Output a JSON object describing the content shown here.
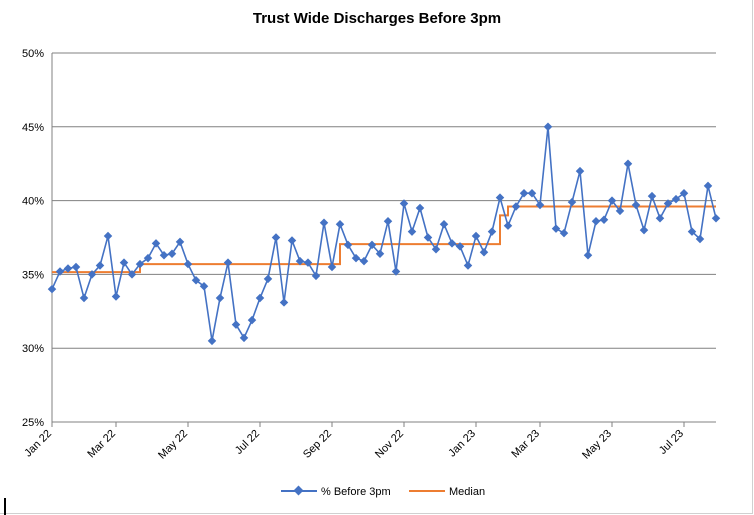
{
  "chart_data": {
    "type": "line",
    "title": "Trust Wide Discharges Before 3pm",
    "xlabel": "",
    "ylabel": "",
    "ylim": [
      25,
      50
    ],
    "y_ticks": [
      "25%",
      "30%",
      "35%",
      "40%",
      "45%",
      "50%"
    ],
    "y_tick_values": [
      25,
      30,
      35,
      40,
      45,
      50
    ],
    "x_ticks": [
      "Jan 22",
      "Mar 22",
      "May 22",
      "Jul 22",
      "Sep 22",
      "Nov 22",
      "Jan 23",
      "Mar 23",
      "May 23",
      "Jul 23"
    ],
    "x_tick_indices": [
      0,
      8,
      17,
      26,
      35,
      44,
      53,
      61,
      70,
      79
    ],
    "grid": "horizontal",
    "legend_position": "bottom",
    "series": [
      {
        "name": "% Before 3pm",
        "color": "#4472C4",
        "marker": "diamond",
        "values": [
          34.0,
          35.2,
          35.4,
          35.5,
          33.4,
          35.0,
          35.6,
          37.6,
          33.5,
          35.8,
          35.0,
          35.7,
          36.1,
          37.1,
          36.3,
          36.4,
          37.2,
          35.7,
          34.6,
          34.2,
          30.5,
          33.4,
          35.8,
          31.6,
          30.7,
          31.9,
          33.4,
          34.7,
          37.5,
          33.1,
          37.3,
          35.9,
          35.8,
          34.9,
          38.5,
          35.5,
          38.4,
          37.0,
          36.1,
          35.9,
          37.0,
          36.4,
          38.6,
          35.2,
          39.8,
          37.9,
          39.5,
          37.5,
          36.7,
          38.4,
          37.1,
          36.9,
          35.6,
          37.6,
          36.5,
          37.9,
          40.2,
          38.3,
          39.6,
          40.5,
          40.5,
          39.7,
          45.0,
          38.1,
          37.8,
          39.9,
          42.0,
          36.3,
          38.6,
          38.7,
          40.0,
          39.3,
          42.5,
          39.7,
          38.0,
          40.3,
          38.8,
          39.8,
          40.1,
          40.5,
          37.9,
          37.4,
          41.0,
          38.8
        ]
      },
      {
        "name": "Median",
        "color": "#ED7D31",
        "values": [
          35.15,
          35.15,
          35.15,
          35.15,
          35.15,
          35.15,
          35.15,
          35.15,
          35.15,
          35.15,
          35.15,
          35.7,
          35.7,
          35.7,
          35.7,
          35.7,
          35.7,
          35.7,
          35.7,
          35.7,
          35.7,
          35.7,
          35.7,
          35.7,
          35.7,
          35.7,
          35.7,
          35.7,
          35.7,
          35.7,
          35.7,
          35.7,
          35.7,
          35.7,
          35.7,
          35.7,
          37.05,
          37.05,
          37.05,
          37.05,
          37.05,
          37.05,
          37.05,
          37.05,
          37.05,
          37.05,
          37.05,
          37.05,
          37.05,
          37.05,
          37.05,
          37.05,
          37.05,
          37.05,
          37.05,
          37.05,
          39.0,
          39.6,
          39.6,
          39.6,
          39.6,
          39.6,
          39.6,
          39.6,
          39.6,
          39.6,
          39.6,
          39.6,
          39.6,
          39.6,
          39.6,
          39.6,
          39.6,
          39.6,
          39.6,
          39.6,
          39.6,
          39.6,
          39.6,
          39.6,
          39.6,
          39.6,
          39.6,
          39.6
        ]
      }
    ]
  }
}
